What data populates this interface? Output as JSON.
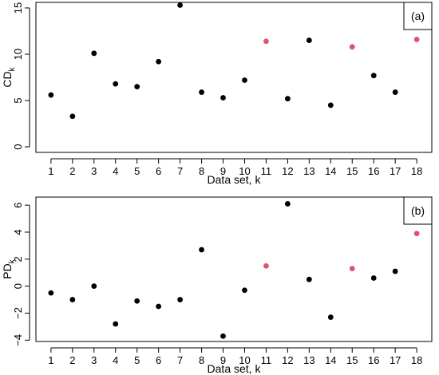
{
  "chart_data": [
    {
      "type": "scatter",
      "panel_label": "(a)",
      "xlabel": "Data set, k",
      "ylabel": "CD",
      "ylabel_sub": "k",
      "x": [
        1,
        2,
        3,
        4,
        5,
        6,
        7,
        8,
        9,
        10,
        11,
        12,
        13,
        14,
        15,
        16,
        17,
        18
      ],
      "y": [
        5.6,
        3.3,
        10.1,
        6.8,
        6.5,
        9.2,
        15.3,
        5.9,
        5.3,
        7.2,
        11.4,
        5.2,
        11.5,
        4.5,
        10.8,
        7.7,
        5.9,
        11.6
      ],
      "highlight": [
        false,
        false,
        false,
        false,
        false,
        false,
        false,
        false,
        false,
        false,
        true,
        false,
        false,
        false,
        true,
        false,
        false,
        true
      ],
      "yticks": [
        0,
        5,
        10,
        15
      ],
      "ytick_labels": [
        "0",
        "5",
        "10",
        "15"
      ],
      "xticks": [
        1,
        2,
        3,
        4,
        5,
        6,
        7,
        8,
        9,
        10,
        11,
        12,
        13,
        14,
        15,
        16,
        17,
        18
      ],
      "xtick_labels": [
        "1",
        "2",
        "3",
        "4",
        "5",
        "6",
        "7",
        "8",
        "9",
        "10",
        "11",
        "12",
        "13",
        "14",
        "15",
        "16",
        "17",
        "18"
      ],
      "xlim": [
        0.3,
        18.7
      ],
      "ylim": [
        -0.6,
        15.6
      ],
      "grid": false,
      "colors": {
        "default": "#000000",
        "highlight": "#df536b"
      }
    },
    {
      "type": "scatter",
      "panel_label": "(b)",
      "xlabel": "Data set, k",
      "ylabel": "PD",
      "ylabel_sub": "k",
      "x": [
        1,
        2,
        3,
        4,
        5,
        6,
        7,
        8,
        9,
        10,
        11,
        12,
        13,
        14,
        15,
        16,
        17,
        18
      ],
      "y": [
        -0.5,
        -1.0,
        0.0,
        -2.8,
        -1.1,
        -1.5,
        -1.0,
        2.7,
        -3.7,
        -0.3,
        1.5,
        6.1,
        0.5,
        -2.3,
        1.3,
        0.6,
        1.1,
        3.9
      ],
      "highlight": [
        false,
        false,
        false,
        false,
        false,
        false,
        false,
        false,
        false,
        false,
        true,
        false,
        false,
        false,
        true,
        false,
        false,
        true
      ],
      "yticks": [
        -4,
        -2,
        0,
        2,
        4,
        6
      ],
      "ytick_labels": [
        "−4",
        "−2",
        "0",
        "2",
        "4",
        "6"
      ],
      "xticks": [
        1,
        2,
        3,
        4,
        5,
        6,
        7,
        8,
        9,
        10,
        11,
        12,
        13,
        14,
        15,
        16,
        17,
        18
      ],
      "xtick_labels": [
        "1",
        "2",
        "3",
        "4",
        "5",
        "6",
        "7",
        "8",
        "9",
        "10",
        "11",
        "12",
        "13",
        "14",
        "15",
        "16",
        "17",
        "18"
      ],
      "xlim": [
        0.3,
        18.7
      ],
      "ylim": [
        -4.1,
        6.6
      ],
      "grid": false,
      "colors": {
        "default": "#000000",
        "highlight": "#df536b"
      }
    }
  ]
}
